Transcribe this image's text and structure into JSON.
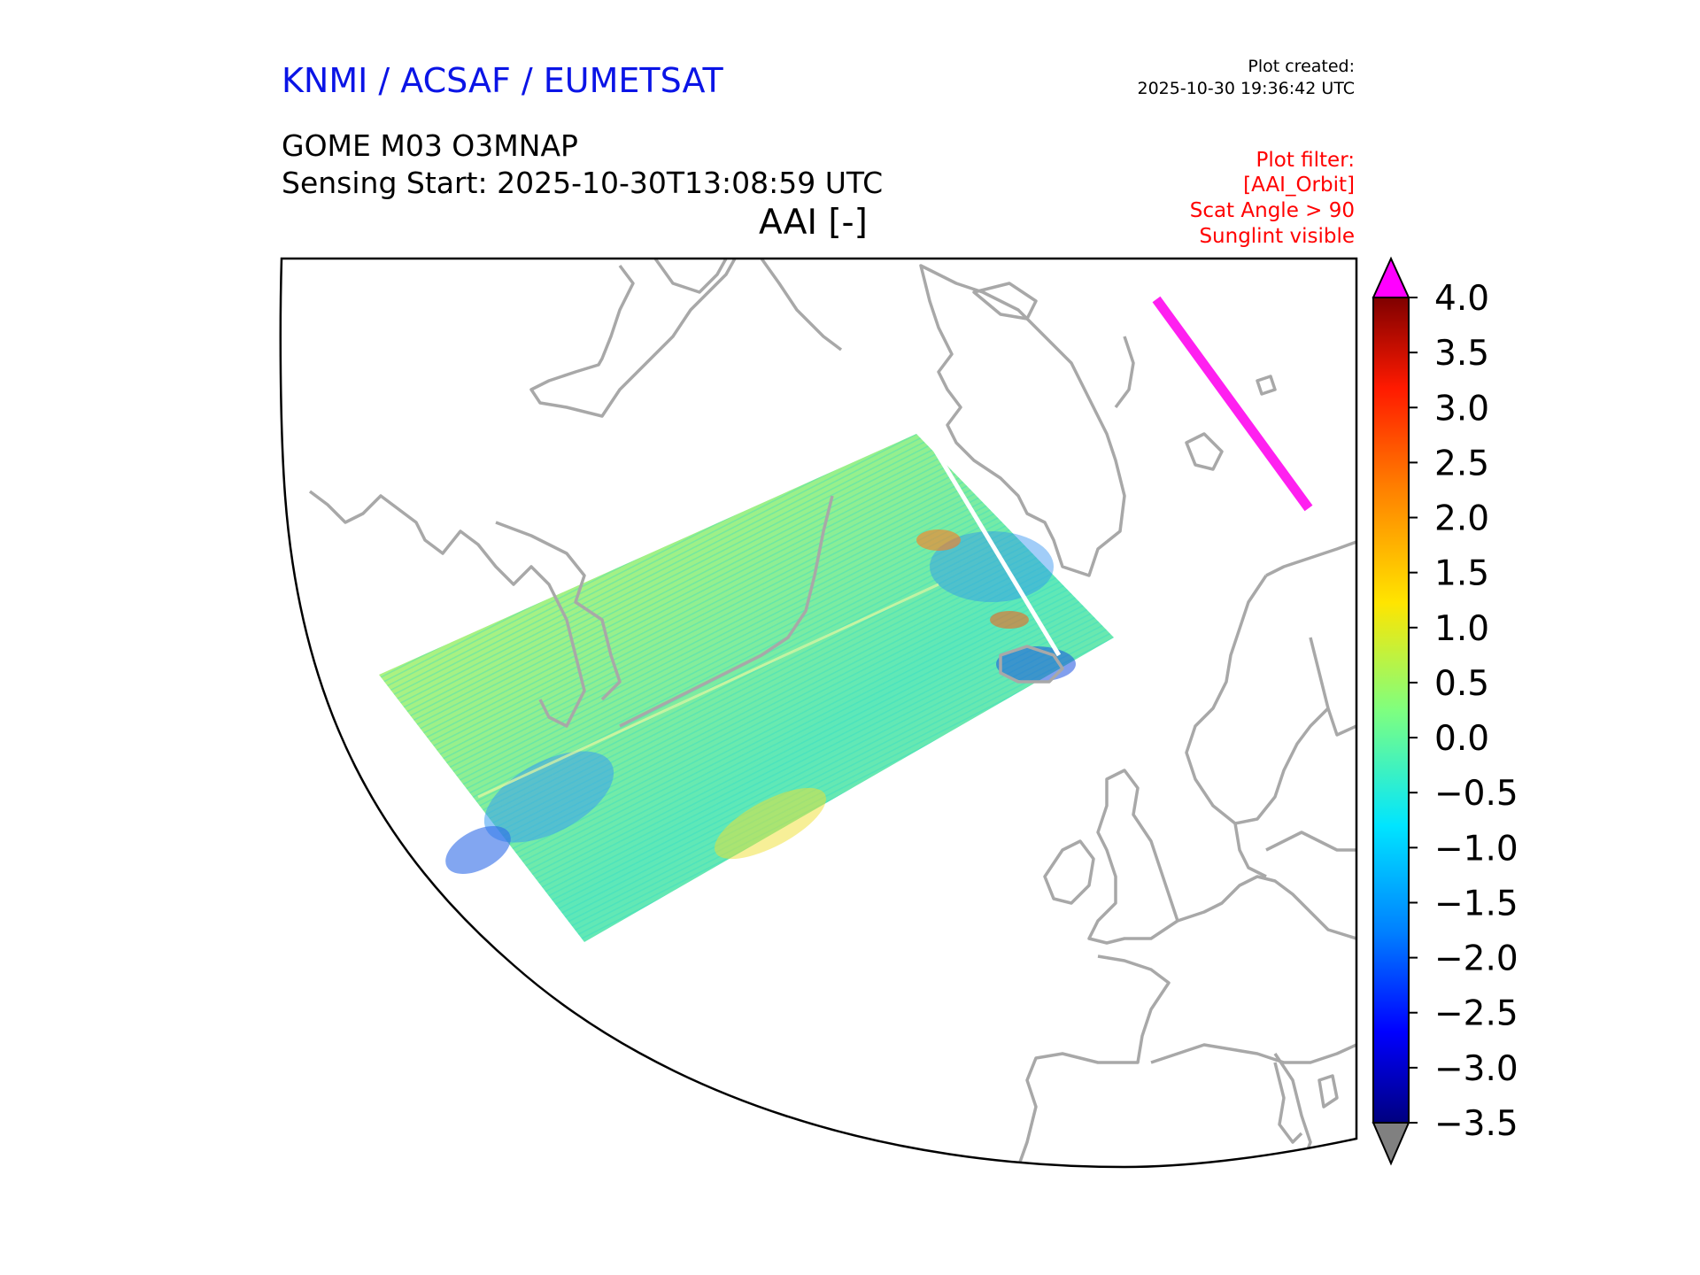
{
  "header": {
    "agency": "KNMI / ACSAF / EUMETSAT",
    "created_label": "Plot created:",
    "created_time": "2025-10-30 19:36:42 UTC",
    "product": "GOME M03 O3MNAP",
    "sensing_start": "Sensing Start: 2025-10-30T13:08:59 UTC",
    "variable": "AAI [-]"
  },
  "filter": {
    "lines": [
      "Plot filter:",
      "[AAI_Orbit]",
      "Scat Angle > 90",
      "Sunglint visible"
    ]
  },
  "colorbar": {
    "ticks": [
      "4.0",
      "3.5",
      "3.0",
      "2.5",
      "2.0",
      "1.5",
      "1.0",
      "0.5",
      "0.0",
      "−0.5",
      "−1.0",
      "−1.5",
      "−2.0",
      "−2.5",
      "−3.0",
      "−3.5"
    ],
    "over_color": "#ff00ff",
    "under_color": "#808080"
  },
  "colors": {
    "coastline": "#a8a8a8",
    "map_border": "#000000",
    "sunglint": "#ff20f0"
  }
}
